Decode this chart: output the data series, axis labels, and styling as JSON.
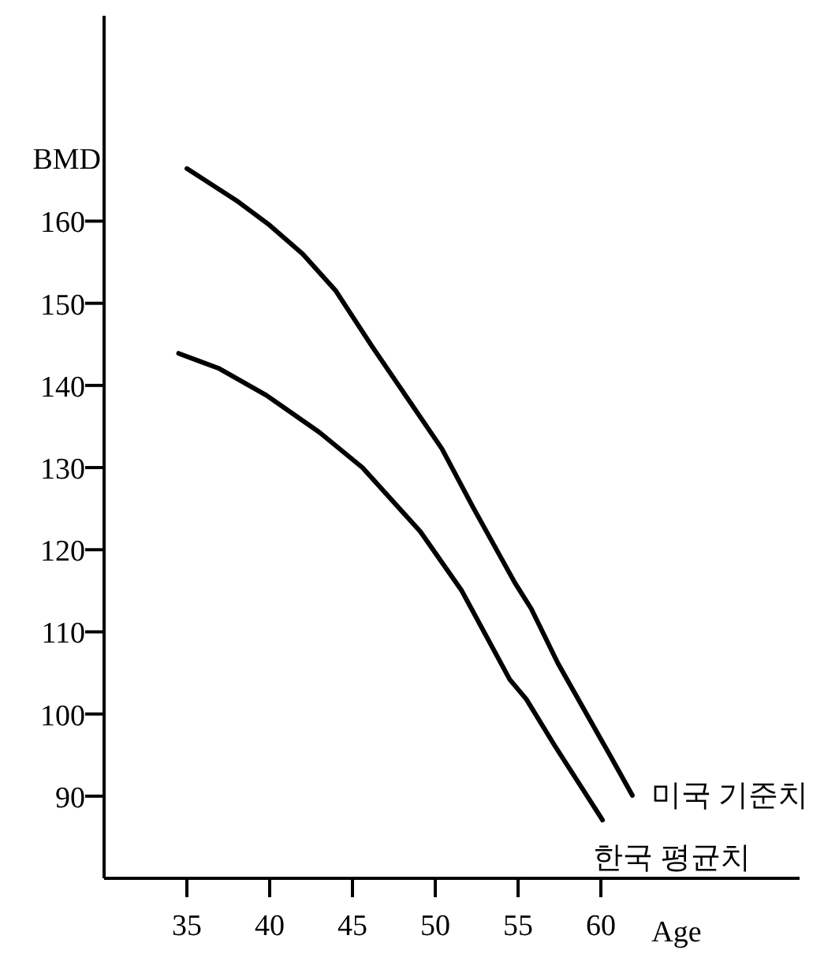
{
  "chart_data": {
    "type": "line",
    "xlabel": "Age",
    "ylabel": "BMD",
    "xlim": [
      30,
      72
    ],
    "ylim": [
      80,
      185
    ],
    "xticks": [
      35,
      40,
      45,
      50,
      55,
      60
    ],
    "yticks": [
      90,
      100,
      110,
      120,
      130,
      140,
      150,
      160
    ],
    "grid": false,
    "marker": "none",
    "line_style": "solid",
    "series": [
      {
        "name": "미국 기준치",
        "color": "#000000",
        "x": [
          35,
          38,
          40,
          42,
          44,
          46.2,
          50.4,
          52.3,
          54.8,
          55.8,
          57.4,
          60.6,
          61.9
        ],
        "values": [
          166.4,
          162.5,
          159.5,
          156,
          151.5,
          144.7,
          132.3,
          125.1,
          116,
          112.8,
          106.2,
          94.8,
          90.1
        ]
      },
      {
        "name": "한국 평균치",
        "color": "#000000",
        "x": [
          34.5,
          36.9,
          39.8,
          43,
          45.6,
          49.1,
          51.6,
          54.5,
          55.5,
          57.2,
          60.1
        ],
        "values": [
          143.9,
          142.1,
          138.8,
          134.3,
          130,
          122.2,
          115,
          104.2,
          101.8,
          96.2,
          87.1
        ]
      }
    ]
  }
}
